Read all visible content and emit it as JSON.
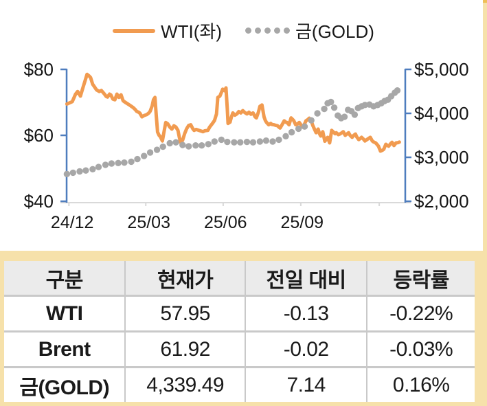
{
  "colors": {
    "wti_line": "#F19B50",
    "gold_dot": "#A7A7A7",
    "axis_blue": "#4E7DBE",
    "axis_gray": "#D9D9D9",
    "tan_bg": "#F6E1AA",
    "tan_cap": "#EFBF58",
    "table_header_bg": "#EBEBEB",
    "table_grid": "#C9C9C9",
    "text": "#1A1A1A"
  },
  "legend": {
    "wti_label": "WTI(좌)",
    "gold_label": "금(GOLD)"
  },
  "chart_data": {
    "type": "line",
    "title": "",
    "legend_position": "top",
    "grid": false,
    "x_unit": "months since 2024-12",
    "x_range": [
      -0.22,
      13.04
    ],
    "x_tick_labels": [
      {
        "m": 0,
        "label": "24/12"
      },
      {
        "m": 3,
        "label": "25/03"
      },
      {
        "m": 6,
        "label": "25/06"
      },
      {
        "m": 9,
        "label": "25/09"
      }
    ],
    "x_axis_tick_months": [
      -0.13,
      2.88,
      5.91,
      8.95,
      12.02
    ],
    "left_axis": {
      "range": [
        40,
        80
      ],
      "ticks": [
        {
          "v": 80,
          "label": "$80"
        },
        {
          "v": 60,
          "label": "$60"
        },
        {
          "v": 40,
          "label": "$40"
        }
      ]
    },
    "right_axis": {
      "range": [
        2000,
        5000
      ],
      "ticks": [
        {
          "v": 5000,
          "label": "$5,000"
        },
        {
          "v": 4000,
          "label": "$4,000"
        },
        {
          "v": 3000,
          "label": "$3,000"
        },
        {
          "v": 2000,
          "label": "$2,000"
        }
      ]
    },
    "series": [
      {
        "name": "WTI(좌)",
        "axis": "left",
        "style": "line",
        "color": "#F19B50",
        "points": [
          [
            -0.21,
            69.5
          ],
          [
            0,
            70.2
          ],
          [
            0.13,
            72.5
          ],
          [
            0.21,
            73.3
          ],
          [
            0.32,
            71.9
          ],
          [
            0.42,
            74.5
          ],
          [
            0.5,
            76.5
          ],
          [
            0.58,
            78.5
          ],
          [
            0.66,
            78
          ],
          [
            0.72,
            77.5
          ],
          [
            0.8,
            75.5
          ],
          [
            0.88,
            74.6
          ],
          [
            0.95,
            73.8
          ],
          [
            1.06,
            73.3
          ],
          [
            1.14,
            73.6
          ],
          [
            1.25,
            72.6
          ],
          [
            1.33,
            71.8
          ],
          [
            1.38,
            71.6
          ],
          [
            1.46,
            72.5
          ],
          [
            1.51,
            72.3
          ],
          [
            1.59,
            71
          ],
          [
            1.67,
            70.8
          ],
          [
            1.75,
            72.5
          ],
          [
            1.83,
            71.5
          ],
          [
            1.91,
            72.3
          ],
          [
            1.99,
            70.5
          ],
          [
            2.04,
            70.2
          ],
          [
            2.12,
            69.8
          ],
          [
            2.2,
            69.4
          ],
          [
            2.28,
            69
          ],
          [
            2.39,
            68.4
          ],
          [
            2.47,
            67.8
          ],
          [
            2.52,
            67.3
          ],
          [
            2.6,
            67
          ],
          [
            2.65,
            66.7
          ],
          [
            2.73,
            65.6
          ],
          [
            2.81,
            66
          ],
          [
            2.92,
            66.3
          ],
          [
            3,
            66.8
          ],
          [
            3.05,
            67.3
          ],
          [
            3.13,
            69
          ],
          [
            3.18,
            70.8
          ],
          [
            3.24,
            71.5
          ],
          [
            3.29,
            66
          ],
          [
            3.34,
            61
          ],
          [
            3.4,
            60
          ],
          [
            3.45,
            59.6
          ],
          [
            3.53,
            58.3
          ],
          [
            3.58,
            60.5
          ],
          [
            3.66,
            63.9
          ],
          [
            3.74,
            63.5
          ],
          [
            3.82,
            62.5
          ],
          [
            3.9,
            61.9
          ],
          [
            3.98,
            62.9
          ],
          [
            4.06,
            62.5
          ],
          [
            4.14,
            61.5
          ],
          [
            4.19,
            59.5
          ],
          [
            4.24,
            57.9
          ],
          [
            4.32,
            58.5
          ],
          [
            4.4,
            60.5
          ],
          [
            4.48,
            62
          ],
          [
            4.56,
            63
          ],
          [
            4.64,
            63.2
          ],
          [
            4.72,
            62
          ],
          [
            4.77,
            61.5
          ],
          [
            4.85,
            61.8
          ],
          [
            4.96,
            61.5
          ],
          [
            5.04,
            61.3
          ],
          [
            5.12,
            61.1
          ],
          [
            5.2,
            61.4
          ],
          [
            5.31,
            61.5
          ],
          [
            5.38,
            62.5
          ],
          [
            5.49,
            63.6
          ],
          [
            5.57,
            64.5
          ],
          [
            5.65,
            66.5
          ],
          [
            5.7,
            71.5
          ],
          [
            5.78,
            71.9
          ],
          [
            5.84,
            73
          ],
          [
            5.89,
            74
          ],
          [
            5.97,
            73.5
          ],
          [
            6.02,
            74.4
          ],
          [
            6.07,
            68
          ],
          [
            6.1,
            63.6
          ],
          [
            6.18,
            64
          ],
          [
            6.23,
            65.5
          ],
          [
            6.29,
            66.8
          ],
          [
            6.37,
            66.1
          ],
          [
            6.45,
            66.5
          ],
          [
            6.52,
            67.2
          ],
          [
            6.6,
            66.8
          ],
          [
            6.68,
            67.5
          ],
          [
            6.76,
            66.9
          ],
          [
            6.84,
            66.5
          ],
          [
            6.92,
            67
          ],
          [
            7,
            66.4
          ],
          [
            7.08,
            66.8
          ],
          [
            7.16,
            65.6
          ],
          [
            7.21,
            65.3
          ],
          [
            7.29,
            67
          ],
          [
            7.35,
            68.8
          ],
          [
            7.43,
            69.2
          ],
          [
            7.51,
            65.6
          ],
          [
            7.56,
            64.5
          ],
          [
            7.61,
            63.9
          ],
          [
            7.69,
            63.2
          ],
          [
            7.77,
            63.6
          ],
          [
            7.82,
            63.3
          ],
          [
            7.9,
            63.2
          ],
          [
            7.98,
            63
          ],
          [
            8.04,
            62.9
          ],
          [
            8.09,
            62.5
          ],
          [
            8.14,
            62.2
          ],
          [
            8.22,
            63.3
          ],
          [
            8.3,
            64.4
          ],
          [
            8.36,
            64
          ],
          [
            8.41,
            63.9
          ],
          [
            8.49,
            63.2
          ],
          [
            8.57,
            65.3
          ],
          [
            8.67,
            64.5
          ],
          [
            8.75,
            63.2
          ],
          [
            8.83,
            63.5
          ],
          [
            8.89,
            63.9
          ],
          [
            8.97,
            63
          ],
          [
            9.02,
            62.5
          ],
          [
            9.1,
            63.5
          ],
          [
            9.15,
            64.4
          ],
          [
            9.23,
            64.8
          ],
          [
            9.28,
            65.2
          ],
          [
            9.36,
            64.4
          ],
          [
            9.42,
            63
          ],
          [
            9.47,
            62.1
          ],
          [
            9.55,
            60.8
          ],
          [
            9.63,
            61.9
          ],
          [
            9.68,
            60.5
          ],
          [
            9.73,
            59.8
          ],
          [
            9.81,
            61.1
          ],
          [
            9.89,
            58.2
          ],
          [
            9.95,
            58.8
          ],
          [
            10,
            59.4
          ],
          [
            10.08,
            57.7
          ],
          [
            10.16,
            61.5
          ],
          [
            10.21,
            61.1
          ],
          [
            10.29,
            60.5
          ],
          [
            10.34,
            60.8
          ],
          [
            10.42,
            60.2
          ],
          [
            10.48,
            60.4
          ],
          [
            10.56,
            60.8
          ],
          [
            10.61,
            61.1
          ],
          [
            10.69,
            60
          ],
          [
            10.74,
            60.3
          ],
          [
            10.82,
            60.8
          ],
          [
            10.88,
            60
          ],
          [
            10.96,
            59.4
          ],
          [
            11.01,
            59.9
          ],
          [
            11.09,
            60.4
          ],
          [
            11.14,
            59.5
          ],
          [
            11.22,
            58.7
          ],
          [
            11.27,
            59
          ],
          [
            11.33,
            59.4
          ],
          [
            11.41,
            58.8
          ],
          [
            11.46,
            58.3
          ],
          [
            11.54,
            58.7
          ],
          [
            11.59,
            59
          ],
          [
            11.67,
            59.4
          ],
          [
            11.75,
            58.3
          ],
          [
            11.8,
            58
          ],
          [
            11.88,
            57.7
          ],
          [
            11.94,
            57.2
          ],
          [
            11.99,
            56.7
          ],
          [
            12.07,
            55.2
          ],
          [
            12.15,
            55.5
          ],
          [
            12.2,
            55.8
          ],
          [
            12.28,
            57.3
          ],
          [
            12.33,
            57
          ],
          [
            12.39,
            56.7
          ],
          [
            12.47,
            57.5
          ],
          [
            12.52,
            57.9
          ],
          [
            12.6,
            56.9
          ],
          [
            12.68,
            57.7
          ],
          [
            12.76,
            57.8
          ],
          [
            12.81,
            57.95
          ]
        ]
      },
      {
        "name": "금(GOLD)",
        "axis": "right",
        "style": "dots",
        "color": "#A7A7A7",
        "points": [
          [
            -0.21,
            2620
          ],
          [
            0.03,
            2650
          ],
          [
            0.29,
            2680
          ],
          [
            0.53,
            2700
          ],
          [
            0.8,
            2730
          ],
          [
            1.03,
            2780
          ],
          [
            1.3,
            2830
          ],
          [
            1.54,
            2860
          ],
          [
            1.8,
            2870
          ],
          [
            2.04,
            2880
          ],
          [
            2.31,
            2900
          ],
          [
            2.55,
            2960
          ],
          [
            2.81,
            3030
          ],
          [
            3.05,
            3110
          ],
          [
            3.32,
            3170
          ],
          [
            3.55,
            3240
          ],
          [
            3.82,
            3320
          ],
          [
            4.06,
            3340
          ],
          [
            4.32,
            3280
          ],
          [
            4.56,
            3250
          ],
          [
            4.83,
            3270
          ],
          [
            5.07,
            3270
          ],
          [
            5.33,
            3300
          ],
          [
            5.57,
            3360
          ],
          [
            5.84,
            3400
          ],
          [
            6.07,
            3350
          ],
          [
            6.34,
            3340
          ],
          [
            6.58,
            3340
          ],
          [
            6.84,
            3350
          ],
          [
            7.08,
            3340
          ],
          [
            7.35,
            3360
          ],
          [
            7.59,
            3380
          ],
          [
            7.85,
            3360
          ],
          [
            8.09,
            3400
          ],
          [
            8.36,
            3480
          ],
          [
            8.59,
            3570
          ],
          [
            8.86,
            3650
          ],
          [
            9.1,
            3700
          ],
          [
            9.36,
            3840
          ],
          [
            9.6,
            4000
          ],
          [
            9.87,
            4100
          ],
          [
            10,
            4230
          ],
          [
            10.13,
            4260
          ],
          [
            10.26,
            4130
          ],
          [
            10.4,
            3950
          ],
          [
            10.53,
            3890
          ],
          [
            10.66,
            3920
          ],
          [
            10.8,
            4080
          ],
          [
            10.93,
            4050
          ],
          [
            11.06,
            3970
          ],
          [
            11.19,
            4120
          ],
          [
            11.33,
            4160
          ],
          [
            11.46,
            4190
          ],
          [
            11.64,
            4200
          ],
          [
            11.8,
            4160
          ],
          [
            11.96,
            4190
          ],
          [
            12.1,
            4230
          ],
          [
            12.23,
            4280
          ],
          [
            12.36,
            4310
          ],
          [
            12.49,
            4390
          ],
          [
            12.63,
            4470
          ],
          [
            12.73,
            4520
          ]
        ]
      }
    ]
  },
  "table": {
    "headers": [
      "구분",
      "현재가",
      "전일 대비",
      "등락률"
    ],
    "rows": [
      {
        "name": "WTI",
        "price": "57.95",
        "change": "-0.13",
        "pct": "-0.22%"
      },
      {
        "name": "Brent",
        "price": "61.92",
        "change": "-0.02",
        "pct": "-0.03%"
      },
      {
        "name": "금(GOLD)",
        "price": "4,339.49",
        "change": "7.14",
        "pct": "0.16%"
      }
    ]
  }
}
